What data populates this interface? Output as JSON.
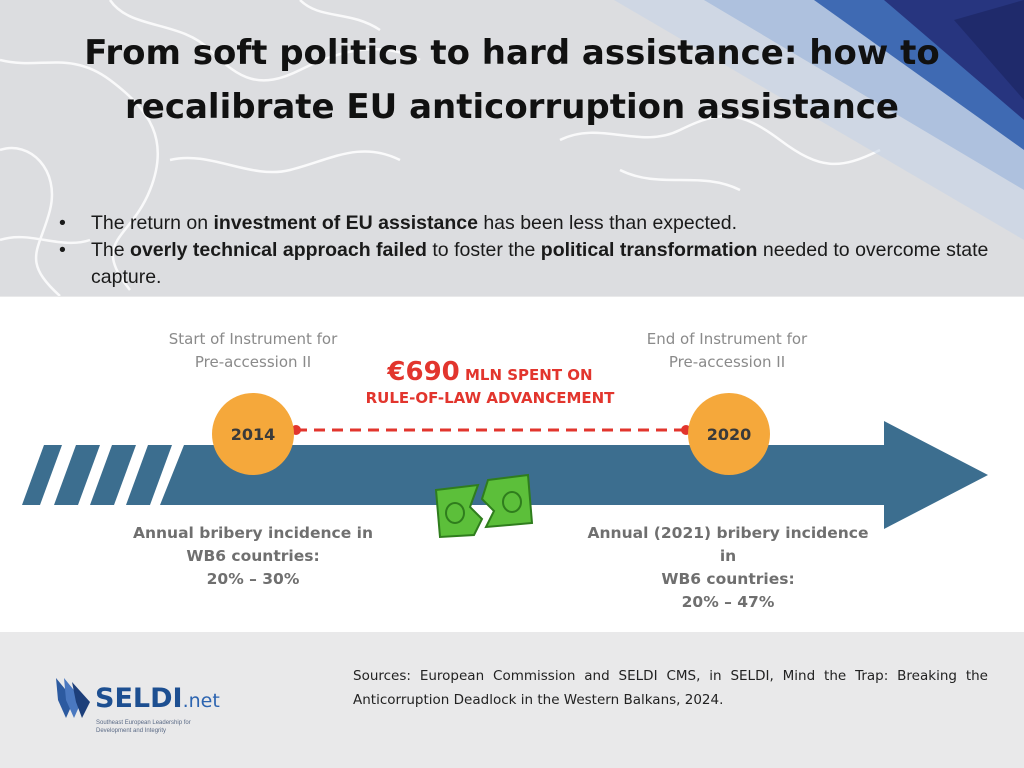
{
  "slide": {
    "title": "From soft politics to hard assistance: how to recalibrate EU anticorruption assistance",
    "bullets": [
      {
        "parts": [
          {
            "text": "The return on ",
            "bold": false
          },
          {
            "text": "investment of EU assistance",
            "bold": true
          },
          {
            "text": " has been less than expected.",
            "bold": false
          }
        ]
      },
      {
        "parts": [
          {
            "text": "The ",
            "bold": false
          },
          {
            "text": "overly technical approach failed",
            "bold": true
          },
          {
            "text": " to foster the ",
            "bold": false
          },
          {
            "text": "political transformation",
            "bold": true
          },
          {
            "text": " needed to overcome state capture.",
            "bold": false
          }
        ]
      }
    ]
  },
  "infographic": {
    "start": {
      "caption_line1": "Start of Instrument for",
      "caption_line2": "Pre-accession II",
      "year": "2014",
      "bribery_line1": "Annual bribery incidence in",
      "bribery_line2": "WB6 countries:",
      "bribery_line3": "20% – 30%"
    },
    "end": {
      "caption_line1": "End of Instrument for",
      "caption_line2": "Pre-accession II",
      "year": "2020",
      "bribery_line1": "Annual (2021) bribery incidence in",
      "bribery_line2": "WB6 countries:",
      "bribery_line3": "20% – 47%"
    },
    "spent": {
      "amount": "€690",
      "unit": " MLN SPENT ON",
      "line2": "RULE-OF-LAW ADVANCEMENT"
    },
    "icons": {
      "money": "torn-banknote-icon"
    },
    "colors": {
      "arrow": "#3c6e8f",
      "circle": "#f5a83b",
      "accent": "#e2352d",
      "banknote": "#5cbf3a"
    }
  },
  "footer": {
    "logo_main": "SELDI",
    "logo_net": ".net",
    "logo_sub": "Southeast European Leadership for Development and Integrity",
    "sources": "Sources: European Commission and SELDI CMS, in SELDI, Mind the Trap: Breaking the Anticorruption Deadlock in the Western Balkans, 2024."
  }
}
